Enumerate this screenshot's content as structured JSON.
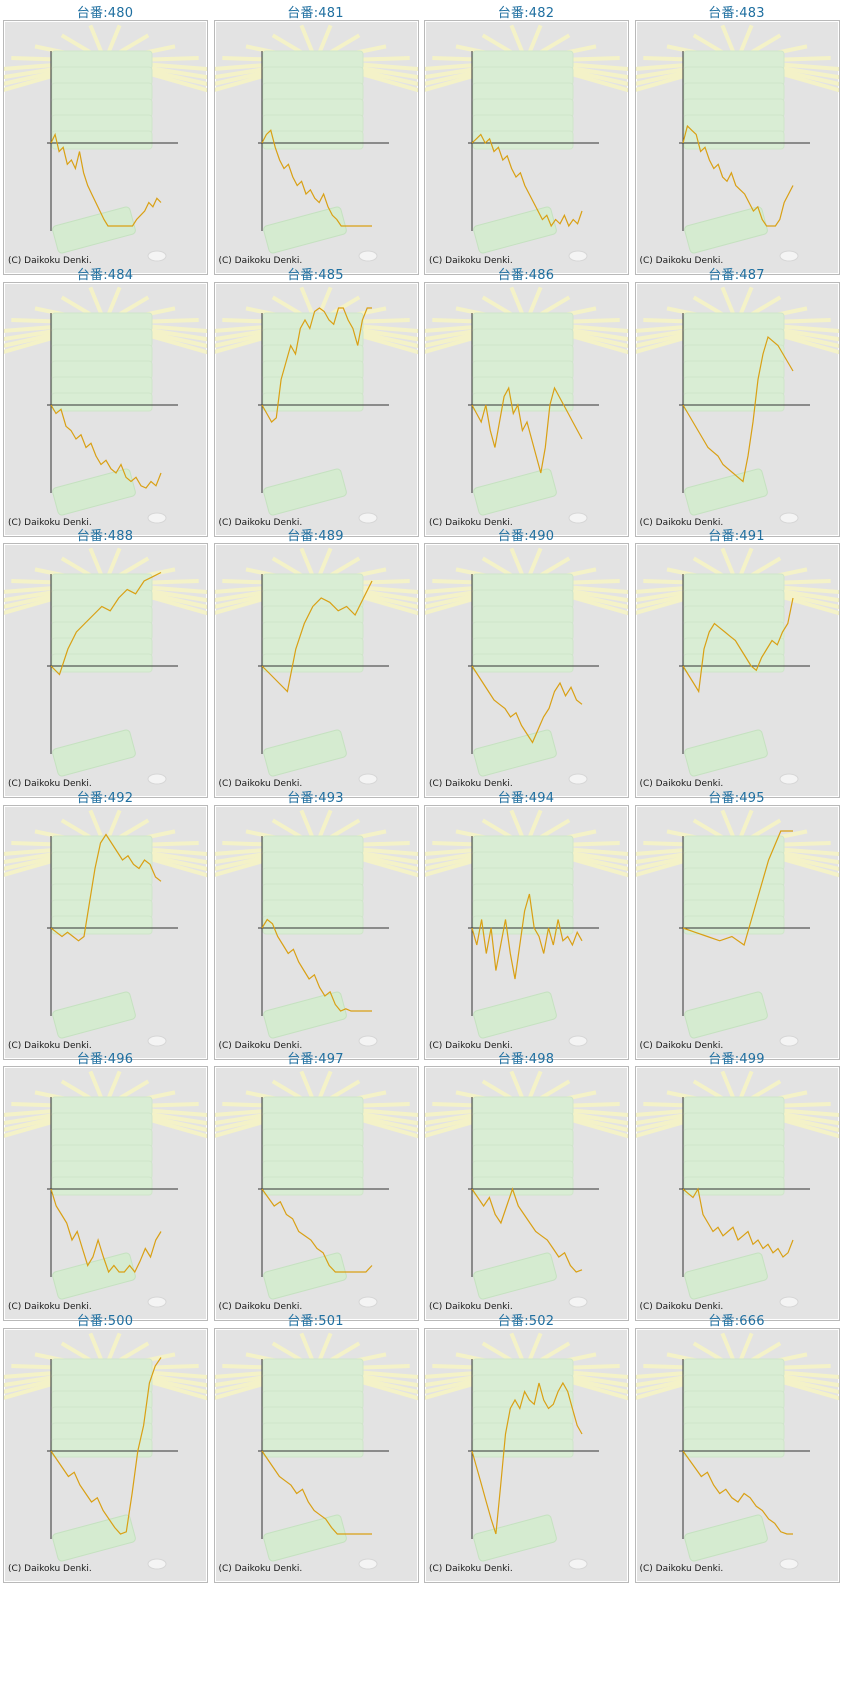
{
  "colors": {
    "title": "#1f6fa0",
    "line": "#d9a014",
    "axis": "#333333",
    "panel_bg": "#e3e3e3"
  },
  "copyright": "(C) Daikoku Denki.",
  "chart_data": [
    {
      "type": "line",
      "title": "台番:480",
      "values": [
        0,
        0.1,
        -0.1,
        -0.05,
        -0.25,
        -0.2,
        -0.3,
        -0.1,
        -0.35,
        -0.5,
        -0.6,
        -0.7,
        -0.8,
        -0.9,
        -1.0,
        -1.1,
        -1.2,
        -1.3,
        -1.15,
        -1.05,
        -1.1,
        -0.9,
        -0.85,
        -0.8,
        -0.7,
        -0.75,
        -0.65,
        -0.7
      ]
    },
    {
      "type": "line",
      "title": "台番:481",
      "values": [
        0,
        0.1,
        0.15,
        -0.05,
        -0.2,
        -0.3,
        -0.25,
        -0.4,
        -0.5,
        -0.45,
        -0.6,
        -0.55,
        -0.65,
        -0.7,
        -0.6,
        -0.75,
        -0.85,
        -0.9,
        -1.0,
        -1.1,
        -1.2,
        -1.3,
        -1.4,
        -1.55,
        -1.6,
        -1.5
      ]
    },
    {
      "type": "line",
      "title": "台番:482",
      "values": [
        0,
        0.05,
        0.1,
        0.0,
        0.05,
        -0.1,
        -0.05,
        -0.2,
        -0.15,
        -0.3,
        -0.4,
        -0.35,
        -0.5,
        -0.6,
        -0.7,
        -0.8,
        -0.9,
        -0.85,
        -1.0,
        -0.9,
        -0.95,
        -0.85,
        -1.0,
        -0.9,
        -0.95,
        -0.8
      ]
    },
    {
      "type": "line",
      "title": "台番:483",
      "values": [
        0,
        0.2,
        0.15,
        0.1,
        -0.1,
        -0.05,
        -0.2,
        -0.3,
        -0.25,
        -0.4,
        -0.45,
        -0.35,
        -0.5,
        -0.55,
        -0.6,
        -0.7,
        -0.8,
        -0.75,
        -0.9,
        -1.0,
        -1.1,
        -1.0,
        -0.9,
        -0.7,
        -0.6,
        -0.5
      ]
    },
    {
      "type": "line",
      "title": "台番:484",
      "values": [
        0,
        -0.1,
        -0.05,
        -0.25,
        -0.3,
        -0.4,
        -0.35,
        -0.5,
        -0.45,
        -0.6,
        -0.7,
        -0.65,
        -0.75,
        -0.8,
        -0.7,
        -0.85,
        -0.9,
        -0.85,
        -0.95,
        -1.0,
        -0.9,
        -0.95,
        -0.8
      ]
    },
    {
      "type": "line",
      "title": "台番:485",
      "values": [
        0,
        -0.1,
        -0.2,
        -0.15,
        0.3,
        0.5,
        0.7,
        0.6,
        0.9,
        1.0,
        0.9,
        1.1,
        1.2,
        1.1,
        1.0,
        0.95,
        1.2,
        1.15,
        1.0,
        0.9,
        0.7,
        1.0,
        1.2,
        1.3
      ]
    },
    {
      "type": "line",
      "title": "台番:486",
      "values": [
        0,
        -0.1,
        -0.2,
        0.0,
        -0.3,
        -0.5,
        -0.2,
        0.1,
        0.2,
        -0.1,
        0.0,
        -0.3,
        -0.2,
        -0.4,
        -0.6,
        -0.8,
        -0.5,
        0.0,
        0.2,
        0.1,
        0.0,
        -0.1,
        -0.2,
        -0.3,
        -0.4
      ]
    },
    {
      "type": "line",
      "title": "台番:487",
      "values": [
        0,
        -0.1,
        -0.2,
        -0.3,
        -0.4,
        -0.5,
        -0.55,
        -0.6,
        -0.7,
        -0.75,
        -0.8,
        -0.85,
        -0.9,
        -0.6,
        -0.2,
        0.3,
        0.6,
        0.8,
        0.75,
        0.7,
        0.6,
        0.5,
        0.4
      ]
    },
    {
      "type": "line",
      "title": "台番:488",
      "values": [
        0,
        -0.1,
        0.2,
        0.4,
        0.5,
        0.6,
        0.7,
        0.65,
        0.8,
        0.9,
        0.85,
        1.0,
        1.05,
        1.1
      ]
    },
    {
      "type": "line",
      "title": "台番:489",
      "values": [
        0,
        -0.1,
        -0.2,
        -0.3,
        0.2,
        0.5,
        0.7,
        0.8,
        0.75,
        0.65,
        0.7,
        0.6,
        0.8,
        1.0
      ]
    },
    {
      "type": "line",
      "title": "台番:490",
      "values": [
        0,
        -0.1,
        -0.2,
        -0.3,
        -0.4,
        -0.45,
        -0.5,
        -0.6,
        -0.55,
        -0.7,
        -0.8,
        -0.9,
        -0.75,
        -0.6,
        -0.5,
        -0.3,
        -0.2,
        -0.35,
        -0.25,
        -0.4,
        -0.45
      ]
    },
    {
      "type": "line",
      "title": "台番:491",
      "values": [
        0,
        -0.1,
        -0.2,
        -0.3,
        0.2,
        0.4,
        0.5,
        0.45,
        0.4,
        0.35,
        0.3,
        0.2,
        0.1,
        0.0,
        -0.05,
        0.1,
        0.2,
        0.3,
        0.25,
        0.4,
        0.5,
        0.8
      ]
    },
    {
      "type": "line",
      "title": "台番:492",
      "values": [
        0,
        -0.05,
        -0.1,
        -0.05,
        -0.1,
        -0.15,
        -0.1,
        0.3,
        0.7,
        1.0,
        1.1,
        1.0,
        0.9,
        0.8,
        0.85,
        0.75,
        0.7,
        0.8,
        0.75,
        0.6,
        0.55
      ]
    },
    {
      "type": "line",
      "title": "台番:493",
      "values": [
        0,
        0.1,
        0.05,
        -0.1,
        -0.2,
        -0.3,
        -0.25,
        -0.4,
        -0.5,
        -0.6,
        -0.55,
        -0.7,
        -0.8,
        -0.75,
        -0.9,
        -1.0,
        -0.95,
        -1.1,
        -1.2,
        -1.3,
        -1.25,
        -1.4
      ]
    },
    {
      "type": "line",
      "title": "台番:494",
      "values": [
        0,
        -0.2,
        0.1,
        -0.3,
        0.0,
        -0.5,
        -0.2,
        0.1,
        -0.3,
        -0.6,
        -0.2,
        0.2,
        0.4,
        0.0,
        -0.1,
        -0.3,
        0.0,
        -0.2,
        0.1,
        -0.15,
        -0.1,
        -0.2,
        -0.05,
        -0.15
      ]
    },
    {
      "type": "line",
      "title": "台番:495",
      "values": [
        0,
        -0.05,
        -0.1,
        -0.15,
        -0.1,
        -0.2,
        0.3,
        0.8,
        1.2,
        1.5
      ]
    },
    {
      "type": "line",
      "title": "台番:496",
      "values": [
        0,
        -0.2,
        -0.3,
        -0.4,
        -0.6,
        -0.5,
        -0.7,
        -0.9,
        -0.8,
        -0.6,
        -0.8,
        -1.0,
        -0.9,
        -1.1,
        -1.0,
        -0.9,
        -1.0,
        -0.85,
        -0.7,
        -0.8,
        -0.6,
        -0.5
      ]
    },
    {
      "type": "line",
      "title": "台番:497",
      "values": [
        0,
        -0.1,
        -0.2,
        -0.15,
        -0.3,
        -0.35,
        -0.5,
        -0.55,
        -0.6,
        -0.7,
        -0.75,
        -0.9,
        -1.0,
        -1.05,
        -1.1,
        -1.05,
        -1.15,
        -1.1,
        -0.9
      ]
    },
    {
      "type": "line",
      "title": "台番:498",
      "values": [
        0,
        -0.1,
        -0.2,
        -0.1,
        -0.3,
        -0.4,
        -0.2,
        0.0,
        -0.2,
        -0.3,
        -0.4,
        -0.5,
        -0.55,
        -0.6,
        -0.7,
        -0.8,
        -0.75,
        -0.9,
        -1.0,
        -0.95
      ]
    },
    {
      "type": "line",
      "title": "台番:499",
      "values": [
        0,
        -0.05,
        -0.1,
        0.0,
        -0.3,
        -0.4,
        -0.5,
        -0.45,
        -0.55,
        -0.5,
        -0.45,
        -0.6,
        -0.55,
        -0.5,
        -0.65,
        -0.6,
        -0.7,
        -0.65,
        -0.75,
        -0.7,
        -0.8,
        -0.75,
        -0.6
      ]
    },
    {
      "type": "line",
      "title": "台番:500",
      "values": [
        0,
        -0.1,
        -0.2,
        -0.3,
        -0.25,
        -0.4,
        -0.5,
        -0.6,
        -0.55,
        -0.7,
        -0.8,
        -0.9,
        -1.0,
        -0.95,
        -0.5,
        0.0,
        0.3,
        0.8,
        1.0,
        1.1
      ]
    },
    {
      "type": "line",
      "title": "台番:501",
      "values": [
        0,
        -0.1,
        -0.2,
        -0.3,
        -0.35,
        -0.4,
        -0.5,
        -0.45,
        -0.6,
        -0.7,
        -0.75,
        -0.8,
        -0.9,
        -1.0,
        -1.1,
        -1.2,
        -1.3,
        -1.25,
        -1.35,
        -1.4
      ]
    },
    {
      "type": "line",
      "title": "台番:502",
      "values": [
        0,
        -0.2,
        -0.4,
        -0.6,
        -0.8,
        -1.0,
        -0.4,
        0.2,
        0.5,
        0.6,
        0.5,
        0.7,
        0.6,
        0.55,
        0.8,
        0.6,
        0.5,
        0.55,
        0.7,
        0.8,
        0.7,
        0.5,
        0.3,
        0.2
      ]
    },
    {
      "type": "line",
      "title": "台番:666",
      "values": [
        0,
        -0.1,
        -0.2,
        -0.3,
        -0.25,
        -0.4,
        -0.5,
        -0.45,
        -0.55,
        -0.6,
        -0.5,
        -0.55,
        -0.65,
        -0.7,
        -0.8,
        -0.85,
        -0.95,
        -1.05,
        -1.1
      ]
    }
  ]
}
